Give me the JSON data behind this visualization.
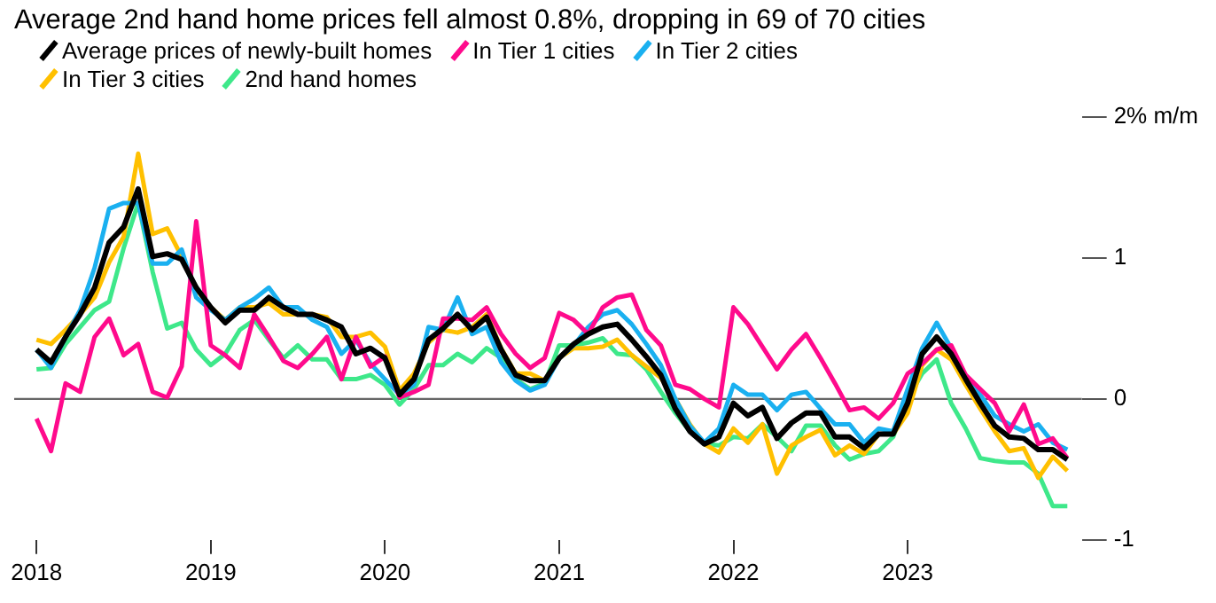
{
  "chart_data": {
    "type": "line",
    "title": "Average 2nd hand home prices fell almost 0.8%, dropping in 69 of 70 cities",
    "x": [
      "2018-01",
      "2018-02",
      "2018-03",
      "2018-04",
      "2018-05",
      "2018-06",
      "2018-07",
      "2018-08",
      "2018-09",
      "2018-10",
      "2018-11",
      "2018-12",
      "2019-01",
      "2019-02",
      "2019-03",
      "2019-04",
      "2019-05",
      "2019-06",
      "2019-07",
      "2019-08",
      "2019-09",
      "2019-10",
      "2019-11",
      "2019-12",
      "2020-01",
      "2020-02",
      "2020-03",
      "2020-04",
      "2020-05",
      "2020-06",
      "2020-07",
      "2020-08",
      "2020-09",
      "2020-10",
      "2020-11",
      "2020-12",
      "2021-01",
      "2021-02",
      "2021-03",
      "2021-04",
      "2021-05",
      "2021-06",
      "2021-07",
      "2021-08",
      "2021-09",
      "2021-10",
      "2021-11",
      "2021-12",
      "2022-01",
      "2022-02",
      "2022-03",
      "2022-04",
      "2022-05",
      "2022-06",
      "2022-07",
      "2022-08",
      "2022-09",
      "2022-10",
      "2022-11",
      "2022-12",
      "2023-01",
      "2023-02",
      "2023-03",
      "2023-04",
      "2023-05",
      "2023-06",
      "2023-07",
      "2023-08",
      "2023-09",
      "2023-10",
      "2023-11",
      "2023-12"
    ],
    "series": [
      {
        "name": "Average prices of newly-built homes",
        "color": "#000000",
        "values": [
          0.35,
          0.26,
          0.44,
          0.6,
          0.79,
          1.11,
          1.22,
          1.49,
          1.01,
          1.03,
          0.99,
          0.79,
          0.65,
          0.54,
          0.63,
          0.63,
          0.72,
          0.65,
          0.6,
          0.6,
          0.56,
          0.51,
          0.32,
          0.36,
          0.29,
          0.03,
          0.14,
          0.42,
          0.5,
          0.6,
          0.49,
          0.58,
          0.35,
          0.17,
          0.13,
          0.13,
          0.29,
          0.39,
          0.46,
          0.51,
          0.53,
          0.42,
          0.3,
          0.17,
          -0.07,
          -0.23,
          -0.32,
          -0.27,
          -0.03,
          -0.12,
          -0.06,
          -0.28,
          -0.17,
          -0.1,
          -0.1,
          -0.27,
          -0.27,
          -0.35,
          -0.25,
          -0.25,
          -0.03,
          0.32,
          0.44,
          0.32,
          0.14,
          -0.03,
          -0.19,
          -0.27,
          -0.28,
          -0.36,
          -0.36,
          -0.43
        ]
      },
      {
        "name": "In Tier 1 cities",
        "color": "#ff0a8c",
        "values": [
          -0.14,
          -0.37,
          0.11,
          0.05,
          0.44,
          0.57,
          0.31,
          0.39,
          0.05,
          0.01,
          0.23,
          1.26,
          0.38,
          0.31,
          0.22,
          0.6,
          0.44,
          0.27,
          0.22,
          0.32,
          0.44,
          0.14,
          0.44,
          0.23,
          0.3,
          0.01,
          0.05,
          0.1,
          0.57,
          0.57,
          0.56,
          0.65,
          0.46,
          0.32,
          0.22,
          0.29,
          0.61,
          0.56,
          0.46,
          0.65,
          0.72,
          0.74,
          0.49,
          0.38,
          0.1,
          0.07,
          0.0,
          -0.06,
          0.65,
          0.53,
          0.37,
          0.21,
          0.35,
          0.46,
          0.29,
          0.11,
          -0.08,
          -0.06,
          -0.14,
          -0.03,
          0.18,
          0.25,
          0.35,
          0.38,
          0.17,
          0.07,
          -0.03,
          -0.23,
          -0.04,
          -0.32,
          -0.28,
          -0.42
        ]
      },
      {
        "name": "In Tier 2 cities",
        "color": "#1ab0f0",
        "values": [
          0.35,
          0.22,
          0.44,
          0.63,
          0.93,
          1.35,
          1.39,
          1.39,
          0.96,
          0.96,
          1.06,
          0.72,
          0.63,
          0.56,
          0.65,
          0.71,
          0.79,
          0.65,
          0.65,
          0.56,
          0.51,
          0.32,
          0.42,
          0.25,
          0.14,
          0.03,
          0.1,
          0.51,
          0.49,
          0.72,
          0.46,
          0.51,
          0.26,
          0.13,
          0.06,
          0.1,
          0.29,
          0.38,
          0.51,
          0.6,
          0.63,
          0.53,
          0.39,
          0.24,
          0.0,
          -0.19,
          -0.31,
          -0.21,
          0.1,
          0.03,
          0.03,
          -0.08,
          0.03,
          0.05,
          -0.07,
          -0.18,
          -0.18,
          -0.31,
          -0.21,
          -0.23,
          0.07,
          0.36,
          0.54,
          0.36,
          0.14,
          0.03,
          -0.12,
          -0.18,
          -0.23,
          -0.18,
          -0.31,
          -0.36
        ]
      },
      {
        "name": "In Tier 3 cities",
        "color": "#ffc000",
        "values": [
          0.42,
          0.39,
          0.49,
          0.6,
          0.72,
          0.97,
          1.15,
          1.74,
          1.17,
          1.21,
          1.01,
          0.78,
          0.65,
          0.56,
          0.65,
          0.65,
          0.68,
          0.6,
          0.6,
          0.6,
          0.58,
          0.44,
          0.44,
          0.47,
          0.37,
          0.06,
          0.18,
          0.4,
          0.49,
          0.47,
          0.51,
          0.6,
          0.36,
          0.18,
          0.18,
          0.13,
          0.29,
          0.36,
          0.36,
          0.37,
          0.42,
          0.31,
          0.23,
          0.15,
          0.0,
          -0.18,
          -0.32,
          -0.38,
          -0.21,
          -0.31,
          -0.18,
          -0.53,
          -0.33,
          -0.27,
          -0.22,
          -0.4,
          -0.33,
          -0.39,
          -0.25,
          -0.25,
          -0.1,
          0.24,
          0.35,
          0.28,
          0.1,
          -0.07,
          -0.23,
          -0.37,
          -0.35,
          -0.56,
          -0.41,
          -0.51
        ]
      },
      {
        "name": "2nd hand homes",
        "color": "#3ee88a",
        "values": [
          0.21,
          0.22,
          0.39,
          0.51,
          0.63,
          0.69,
          1.07,
          1.39,
          0.9,
          0.5,
          0.54,
          0.35,
          0.24,
          0.32,
          0.49,
          0.56,
          0.42,
          0.29,
          0.38,
          0.28,
          0.28,
          0.14,
          0.14,
          0.17,
          0.1,
          -0.04,
          0.07,
          0.24,
          0.24,
          0.32,
          0.26,
          0.36,
          0.29,
          0.14,
          0.07,
          0.11,
          0.38,
          0.38,
          0.4,
          0.43,
          0.32,
          0.31,
          0.21,
          0.05,
          -0.1,
          -0.23,
          -0.32,
          -0.33,
          -0.27,
          -0.28,
          -0.18,
          -0.27,
          -0.37,
          -0.19,
          -0.19,
          -0.33,
          -0.43,
          -0.39,
          -0.37,
          -0.27,
          0.0,
          0.18,
          0.28,
          -0.03,
          -0.21,
          -0.42,
          -0.44,
          -0.45,
          -0.45,
          -0.53,
          -0.76,
          -0.76
        ]
      }
    ],
    "xlim": [
      "2017-11-15",
      "2024-01-01"
    ],
    "xticks": [
      "2018",
      "2019",
      "2020",
      "2021",
      "2022",
      "2023"
    ],
    "ylim": [
      -1,
      2
    ],
    "yticks": [
      -1,
      0,
      1,
      {
        "value": 2,
        "label": "2% m/m"
      }
    ],
    "ref_lines": [
      {
        "axis": "y",
        "value": 0,
        "color": "#666666"
      }
    ],
    "grid": false,
    "legend": "top",
    "marker": "none",
    "line_style": "solid"
  }
}
